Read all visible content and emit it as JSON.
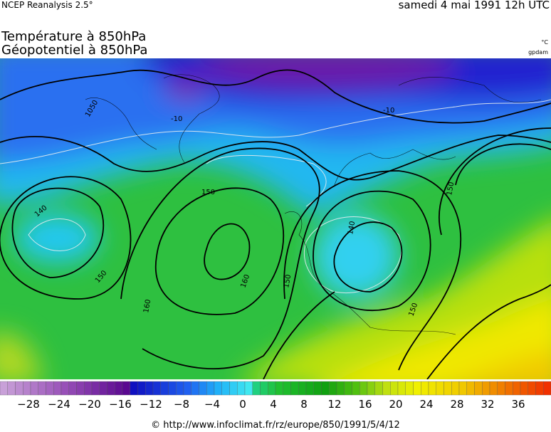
{
  "header": {
    "source": "NCEP Reanalysis 2.5°",
    "datetime": "samedi 4 mai 1991 12h UTC"
  },
  "titles": [
    "Température à 850hPa",
    "Géopotentiel à 850hPa"
  ],
  "units": [
    "°C",
    "gpdam"
  ],
  "contour_labels": [
    "-10",
    "-10",
    "1050",
    "150",
    "140",
    "150",
    "160",
    "160",
    "150",
    "140",
    "150",
    "150"
  ],
  "colorbar": {
    "labels": [
      "−28",
      "−24",
      "−20",
      "−16",
      "−12",
      "−8",
      "−4",
      "0",
      "4",
      "8",
      "12",
      "16",
      "20",
      "24",
      "28",
      "32",
      "36"
    ]
  },
  "footer": "© http://www.infoclimat.fr/rz/europe/850/1991/5/4/12"
}
